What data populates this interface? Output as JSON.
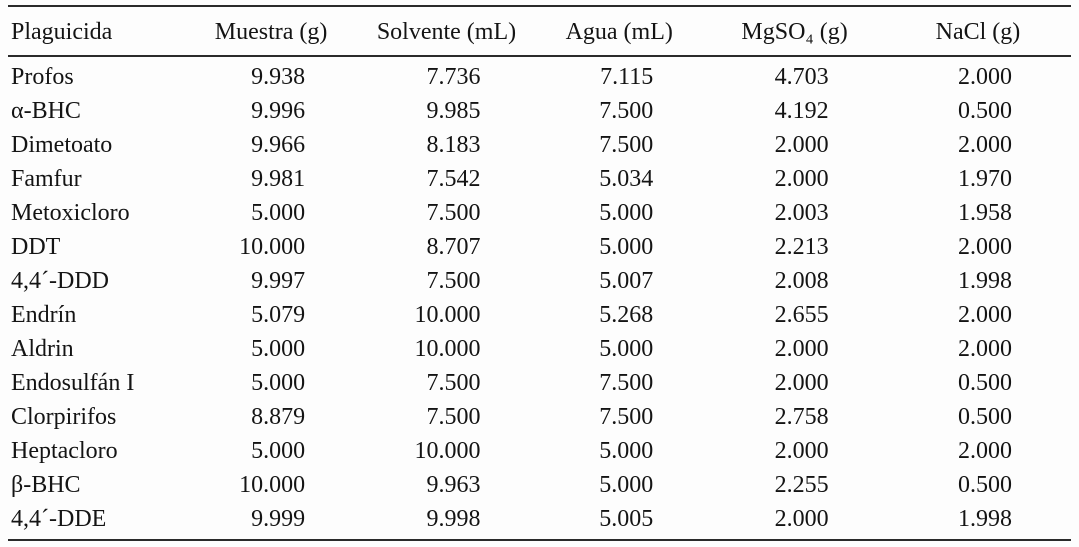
{
  "table": {
    "columns": [
      "Plaguicida",
      "Muestra (g)",
      "Solvente (mL)",
      "Agua (mL)",
      "MgSO₄ (g)",
      "NaCl (g)"
    ],
    "rows": [
      {
        "name": "Profos",
        "values": [
          "9.938",
          "7.736",
          "7.115",
          "4.703",
          "2.000"
        ]
      },
      {
        "name": "α-BHC",
        "values": [
          "9.996",
          "9.985",
          "7.500",
          "4.192",
          "0.500"
        ]
      },
      {
        "name": "Dimetoato",
        "values": [
          "9.966",
          "8.183",
          "7.500",
          "2.000",
          "2.000"
        ]
      },
      {
        "name": "Famfur",
        "values": [
          "9.981",
          "7.542",
          "5.034",
          "2.000",
          "1.970"
        ]
      },
      {
        "name": "Metoxicloro",
        "values": [
          "5.000",
          "7.500",
          "5.000",
          "2.003",
          "1.958"
        ]
      },
      {
        "name": "DDT",
        "values": [
          "10.000",
          "8.707",
          "5.000",
          "2.213",
          "2.000"
        ]
      },
      {
        "name": "4,4´-DDD",
        "values": [
          "9.997",
          "7.500",
          "5.007",
          "2.008",
          "1.998"
        ]
      },
      {
        "name": "Endrín",
        "values": [
          "5.079",
          "10.000",
          "5.268",
          "2.655",
          "2.000"
        ]
      },
      {
        "name": "Aldrin",
        "values": [
          "5.000",
          "10.000",
          "5.000",
          "2.000",
          "2.000"
        ]
      },
      {
        "name": "Endosulfán I",
        "values": [
          "5.000",
          "7.500",
          "7.500",
          "2.000",
          "0.500"
        ]
      },
      {
        "name": "Clorpirifos",
        "values": [
          "8.879",
          "7.500",
          "7.500",
          "2.758",
          "0.500"
        ]
      },
      {
        "name": "Heptacloro",
        "values": [
          "5.000",
          "10.000",
          "5.000",
          "2.000",
          "2.000"
        ]
      },
      {
        "name": "β-BHC",
        "values": [
          "10.000",
          "9.963",
          "5.000",
          "2.255",
          "0.500"
        ]
      },
      {
        "name": "4,4´-DDE",
        "values": [
          "9.999",
          "9.998",
          "5.005",
          "2.000",
          "1.998"
        ]
      }
    ],
    "text_color": "#141414",
    "rule_color": "#2a2a2a",
    "background_color": "#fdfdfd"
  }
}
